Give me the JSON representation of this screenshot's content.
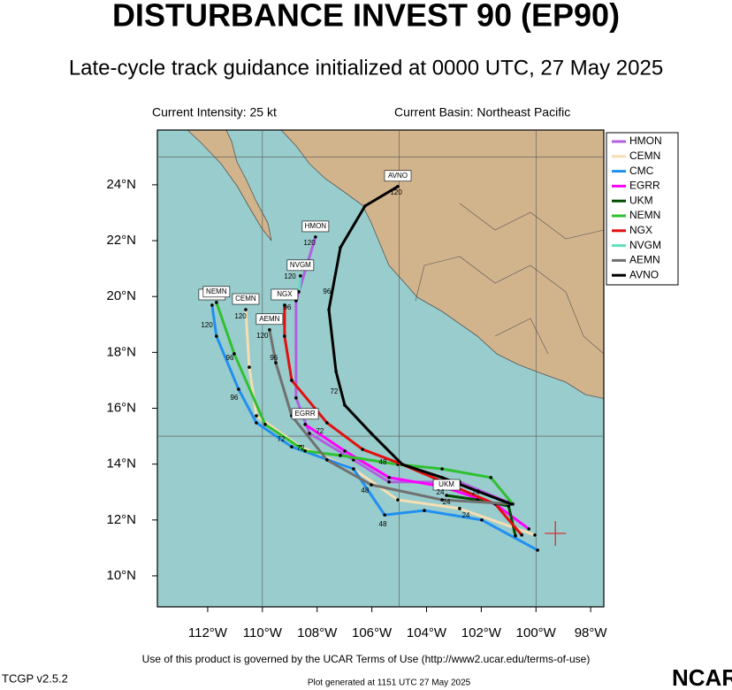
{
  "chart_data": {
    "type": "track-map",
    "title": "DISTURBANCE INVEST 90 (EP90)",
    "subtitle": "Late-cycle track guidance initialized at 0000 UTC, 27 May 2025",
    "intensity": "Current Intensity: 25 kt",
    "basin": "Current Basin: Northeast Pacific",
    "footer": "Use of this product is governed by the UCAR Terms of Use (http://www2.ucar.edu/terms-of-use)",
    "version": "TCGP v2.5.2",
    "generated": "Plot generated at 1151 UTC  27 May 2025",
    "logo": "NCAR",
    "xlim": [
      -113.84,
      -97.52
    ],
    "ylim": [
      8.89,
      25.96
    ],
    "xticks": [
      {
        "value": -112,
        "label": "112°W"
      },
      {
        "value": -110,
        "label": "110°W"
      },
      {
        "value": -108,
        "label": "108°W"
      },
      {
        "value": -106,
        "label": "106°W"
      },
      {
        "value": -104,
        "label": "104°W"
      },
      {
        "value": -102,
        "label": "102°W"
      },
      {
        "value": -100,
        "label": "100°W"
      },
      {
        "value": -98,
        "label": "98°W"
      }
    ],
    "yticks": [
      {
        "value": 10,
        "label": "10°N"
      },
      {
        "value": 12,
        "label": "12°N"
      },
      {
        "value": 14,
        "label": "14°N"
      },
      {
        "value": 16,
        "label": "16°N"
      },
      {
        "value": 18,
        "label": "18°N"
      },
      {
        "value": 20,
        "label": "20°N"
      },
      {
        "value": 22,
        "label": "22°N"
      },
      {
        "value": 24,
        "label": "24°N"
      }
    ],
    "grid_x": [
      -110,
      -105,
      -100
    ],
    "grid_y": [
      15,
      25
    ],
    "legend": "upper right",
    "current_position": {
      "lon": -99.29,
      "lat": 11.52
    },
    "series": [
      {
        "name": "HMON",
        "color": "#b060e0",
        "lon": [
          -101.0,
          -102.79,
          -105.37,
          -106.67,
          -108.28,
          -108.77,
          -108.77,
          -108.06
        ],
        "lat": [
          12.63,
          13.36,
          13.36,
          14.15,
          15.1,
          16.37,
          19.85,
          22.13
        ]
      },
      {
        "name": "CEMN",
        "color": "#f5deb3",
        "lon": [
          -100.04,
          -102.79,
          -105.05,
          -106.67,
          -108.61,
          -110.22,
          -110.48,
          -110.61
        ],
        "lat": [
          11.46,
          12.41,
          12.72,
          13.83,
          14.62,
          15.73,
          17.47,
          19.53
        ]
      },
      {
        "name": "CMC",
        "color": "#2090f0",
        "lon": [
          -99.94,
          -101.98,
          -104.08,
          -105.53,
          -106.67,
          -108.93,
          -110.22,
          -110.87,
          -111.68,
          -111.84
        ],
        "lat": [
          10.92,
          12.0,
          12.34,
          12.18,
          13.83,
          14.62,
          15.48,
          16.68,
          18.58,
          19.69
        ]
      },
      {
        "name": "EGRR",
        "color": "#ff00ff",
        "lon": [
          -100.26,
          -101.49,
          -103.43,
          -105.37,
          -106.99,
          -108.44
        ],
        "lat": [
          11.68,
          12.57,
          13.2,
          13.52,
          14.47,
          15.42
        ]
      },
      {
        "name": "UKM",
        "color": "#004d00",
        "lon": [
          -100.75,
          -101.0,
          -102.14,
          -103.27
        ],
        "lat": [
          11.43,
          12.5,
          12.72,
          12.88
        ]
      },
      {
        "name": "NEMN",
        "color": "#30c030",
        "lon": [
          -100.85,
          -101.65,
          -103.43,
          -105.05,
          -107.15,
          -108.44,
          -109.9,
          -111.03,
          -111.68
        ],
        "lat": [
          12.57,
          13.52,
          13.83,
          13.99,
          14.31,
          14.47,
          15.42,
          17.95,
          19.79
        ]
      },
      {
        "name": "NGX",
        "color": "#e01010",
        "lon": [
          -100.52,
          -101.49,
          -104.89,
          -106.34,
          -107.64,
          -108.93,
          -109.19,
          -109.19
        ],
        "lat": [
          11.46,
          12.57,
          13.99,
          14.53,
          15.48,
          17.0,
          18.58,
          19.69
        ]
      },
      {
        "name": "NVGM",
        "color": "#60e0c0",
        "lon": [
          -108.67,
          -108.61
        ],
        "lat": [
          20.17,
          20.74
        ]
      },
      {
        "name": "AEMN",
        "color": "#707070",
        "lon": [
          -100.85,
          -103.43,
          -106.02,
          -107.64,
          -108.93,
          -109.51,
          -109.74
        ],
        "lat": [
          12.57,
          12.72,
          13.26,
          14.15,
          15.73,
          17.63,
          18.81
        ]
      },
      {
        "name": "AVNO",
        "color": "#000000",
        "lon": [
          -100.91,
          -103.43,
          -104.89,
          -106.02,
          -106.99,
          -107.31,
          -107.57,
          -107.15,
          -106.25,
          -105.05
        ],
        "lat": [
          12.57,
          13.52,
          13.99,
          15.1,
          16.11,
          17.32,
          19.53,
          21.75,
          23.24,
          23.94
        ]
      }
    ],
    "annotations": [
      {
        "text": "120",
        "lon": -105.11,
        "lat": 23.71
      },
      {
        "text": "96",
        "lon": -107.64,
        "lat": 20.17
      },
      {
        "text": "72",
        "lon": -107.38,
        "lat": 16.59
      },
      {
        "text": "48",
        "lon": -105.6,
        "lat": 14.06
      },
      {
        "text": "120",
        "lon": -108.28,
        "lat": 21.91
      },
      {
        "text": "72",
        "lon": -107.9,
        "lat": 15.16
      },
      {
        "text": "120",
        "lon": -110.8,
        "lat": 19.28
      },
      {
        "text": "96",
        "lon": -111.03,
        "lat": 16.37
      },
      {
        "text": "72",
        "lon": -109.32,
        "lat": 14.88
      },
      {
        "text": "120",
        "lon": -112.03,
        "lat": 18.96
      },
      {
        "text": "96",
        "lon": -111.19,
        "lat": 17.79
      },
      {
        "text": "48",
        "lon": -105.6,
        "lat": 11.84
      },
      {
        "text": "48",
        "lon": -106.25,
        "lat": 13.04
      },
      {
        "text": "24",
        "lon": -102.56,
        "lat": 12.15
      },
      {
        "text": "24",
        "lon": -103.5,
        "lat": 12.98
      },
      {
        "text": "120",
        "lon": -110.0,
        "lat": 18.58
      },
      {
        "text": "96",
        "lon": -109.58,
        "lat": 17.79
      },
      {
        "text": "96",
        "lon": -109.09,
        "lat": 19.6
      },
      {
        "text": "120",
        "lon": -108.99,
        "lat": 20.71
      },
      {
        "text": "72",
        "lon": -108.6,
        "lat": 14.56
      },
      {
        "text": "24",
        "lon": -102.2,
        "lat": 12.98
      },
      {
        "text": "24",
        "lon": -103.27,
        "lat": 12.63
      }
    ]
  }
}
